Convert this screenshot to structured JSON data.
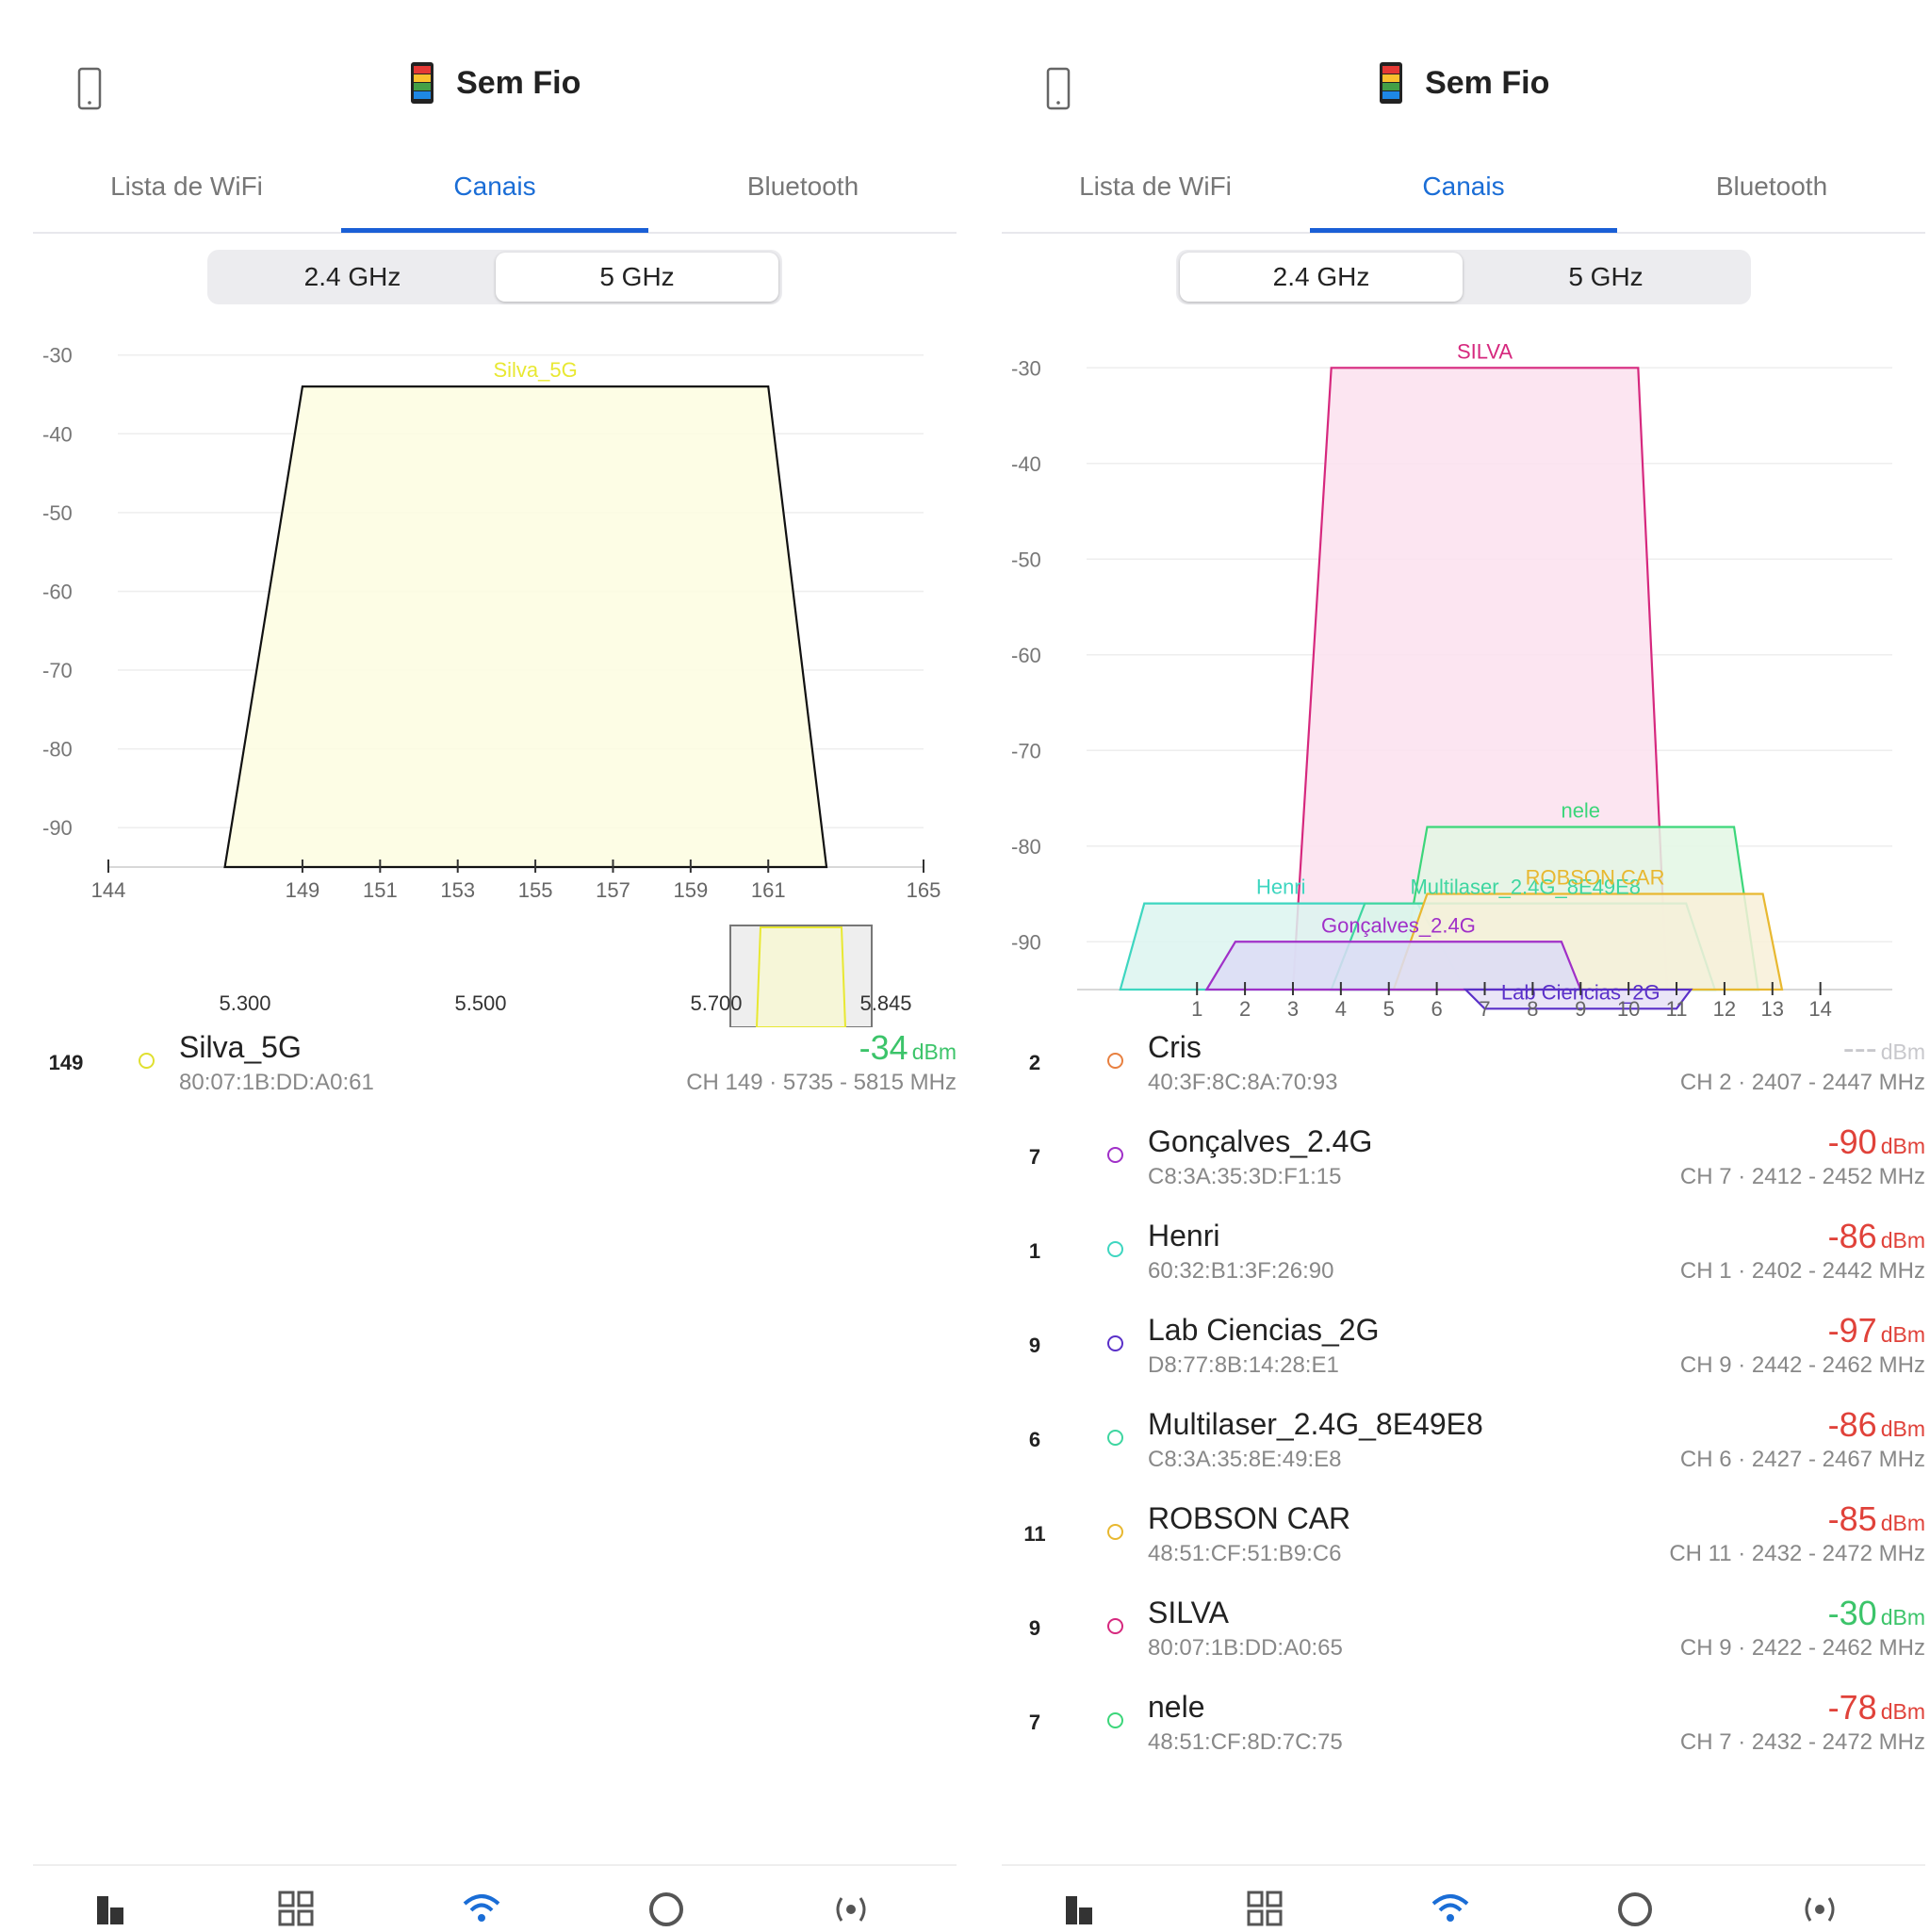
{
  "colors": {
    "accent": "#1a6dd6",
    "strong": "#3cc46a",
    "weak": "#e0423a",
    "unknown": "#c8c8cc"
  },
  "panels": [
    {
      "app_title": "Sem Fio",
      "tabs": [
        "Lista de WiFi",
        "Canais",
        "Bluetooth"
      ],
      "active_tab": "Canais",
      "band_toggle": {
        "options": [
          "2.4 GHz",
          "5 GHz"
        ],
        "selected": "5 GHz"
      },
      "chart_data": {
        "type": "area",
        "y_ticks": [
          -30,
          -40,
          -50,
          -60,
          -70,
          -80,
          -90
        ],
        "ylim": [
          -95,
          -28
        ],
        "x_ticks": [
          "144",
          "149",
          "151",
          "153",
          "155",
          "157",
          "159",
          "161",
          "165"
        ],
        "xlim": [
          144,
          165
        ],
        "grid": true,
        "series": [
          {
            "name": "Silva_5G",
            "x": [
              147,
              149,
              161,
              162.5
            ],
            "y": [
              -95,
              -34,
              -34,
              -95
            ],
            "color": "#e8e832",
            "fill": "#fdfde0"
          }
        ],
        "overview": {
          "labels": [
            "5.300",
            "5.500",
            "5.700",
            "5.845"
          ]
        }
      },
      "networks": [
        {
          "channel": "149",
          "ssid": "Silva_5G",
          "mac": "80:07:1B:DD:A0:61",
          "signal": "-34",
          "unit": "dBm",
          "range": "CH 149 · 5735 - 5815 MHz",
          "dot_color": "#e0e030",
          "signal_color": "#3cc46a"
        }
      ],
      "bottom_nav": [
        "bars-icon",
        "grid-icon",
        "wifi-icon",
        "circle-icon",
        "radio-icon"
      ]
    },
    {
      "app_title": "Sem Fio",
      "tabs": [
        "Lista de WiFi",
        "Canais",
        "Bluetooth"
      ],
      "active_tab": "Canais",
      "band_toggle": {
        "options": [
          "2.4 GHz",
          "5 GHz"
        ],
        "selected": "2.4 GHz"
      },
      "chart_data": {
        "type": "area",
        "y_ticks": [
          -30,
          -40,
          -50,
          -60,
          -70,
          -80,
          -90
        ],
        "ylim": [
          -95,
          -28
        ],
        "x_ticks": [
          "1",
          "2",
          "3",
          "4",
          "5",
          "6",
          "7",
          "8",
          "9",
          "10",
          "11",
          "12",
          "13",
          "14"
        ],
        "xlim": [
          -1.5,
          15.5
        ],
        "grid": true,
        "series": [
          {
            "name": "SILVA",
            "x": [
              3,
              3.8,
              10.2,
              10.8
            ],
            "y": [
              -95,
              -30,
              -30,
              -95
            ],
            "color": "#d6287e",
            "fill": "#fbe0ef"
          },
          {
            "name": "nele",
            "x": [
              5.2,
              5.8,
              12.2,
              12.7
            ],
            "y": [
              -95,
              -78,
              -78,
              -95
            ],
            "color": "#3cd67a",
            "fill": "#e3f7e4"
          },
          {
            "name": "Henri",
            "x": [
              -0.6,
              -0.1,
              5.6,
              6.6
            ],
            "y": [
              -95,
              -86,
              -86,
              -95
            ],
            "color": "#3ed6c0",
            "fill": "#dcf5f0"
          },
          {
            "name": "Multilaser_2.4G_8E49E8",
            "x": [
              3.8,
              4.5,
              11.2,
              11.8
            ],
            "y": [
              -95,
              -86,
              -86,
              -95
            ],
            "color": "#3ed6a0",
            "fill": "#dcf5ea"
          },
          {
            "name": "ROBSON CAR",
            "x": [
              5.1,
              5.8,
              12.8,
              13.2
            ],
            "y": [
              -95,
              -85,
              -85,
              -95
            ],
            "color": "#e8b830",
            "fill": "#f8f0d8"
          },
          {
            "name": "Gonçalves_2.4G",
            "x": [
              1.2,
              1.8,
              8.6,
              9
            ],
            "y": [
              -95,
              -90,
              -90,
              -95
            ],
            "color": "#a030c8",
            "fill": "#dcdcf6"
          },
          {
            "name": "Lab Ciencias_2G",
            "x": [
              6.6,
              7,
              11,
              11.3
            ],
            "y": [
              -95,
              -97,
              -97,
              -95
            ],
            "color": "#5a30c8",
            "fill": "#e6e0f6"
          }
        ]
      },
      "networks": [
        {
          "channel": "2",
          "ssid": "Cris",
          "mac": "40:3F:8C:8A:70:93",
          "signal": "---",
          "unit": "dBm",
          "range": "CH 2 · 2407 - 2447 MHz",
          "dot_color": "#e88040",
          "signal_color": "#c8c8cc"
        },
        {
          "channel": "7",
          "ssid": "Gonçalves_2.4G",
          "mac": "C8:3A:35:3D:F1:15",
          "signal": "-90",
          "unit": "dBm",
          "range": "CH 7 · 2412 - 2452 MHz",
          "dot_color": "#a030c8",
          "signal_color": "#e0423a"
        },
        {
          "channel": "1",
          "ssid": "Henri",
          "mac": "60:32:B1:3F:26:90",
          "signal": "-86",
          "unit": "dBm",
          "range": "CH 1 · 2402 - 2442 MHz",
          "dot_color": "#3ed6c0",
          "signal_color": "#e0423a"
        },
        {
          "channel": "9",
          "ssid": "Lab Ciencias_2G",
          "mac": "D8:77:8B:14:28:E1",
          "signal": "-97",
          "unit": "dBm",
          "range": "CH 9 · 2442 - 2462 MHz",
          "dot_color": "#5a30c8",
          "signal_color": "#e0423a"
        },
        {
          "channel": "6",
          "ssid": "Multilaser_2.4G_8E49E8",
          "mac": "C8:3A:35:8E:49:E8",
          "signal": "-86",
          "unit": "dBm",
          "range": "CH 6 · 2427 - 2467 MHz",
          "dot_color": "#3ed6a0",
          "signal_color": "#e0423a"
        },
        {
          "channel": "11",
          "ssid": "ROBSON CAR",
          "mac": "48:51:CF:51:B9:C6",
          "signal": "-85",
          "unit": "dBm",
          "range": "CH 11 · 2432 - 2472 MHz",
          "dot_color": "#e8b830",
          "signal_color": "#e0423a"
        },
        {
          "channel": "9",
          "ssid": "SILVA",
          "mac": "80:07:1B:DD:A0:65",
          "signal": "-30",
          "unit": "dBm",
          "range": "CH 9 · 2422 - 2462 MHz",
          "dot_color": "#d6287e",
          "signal_color": "#3cc46a"
        },
        {
          "channel": "7",
          "ssid": "nele",
          "mac": "48:51:CF:8D:7C:75",
          "signal": "-78",
          "unit": "dBm",
          "range": "CH 7 · 2432 - 2472 MHz",
          "dot_color": "#3cd67a",
          "signal_color": "#e0423a"
        }
      ],
      "bottom_nav": [
        "bars-icon",
        "grid-icon",
        "wifi-icon",
        "circle-icon",
        "radio-icon"
      ]
    }
  ]
}
